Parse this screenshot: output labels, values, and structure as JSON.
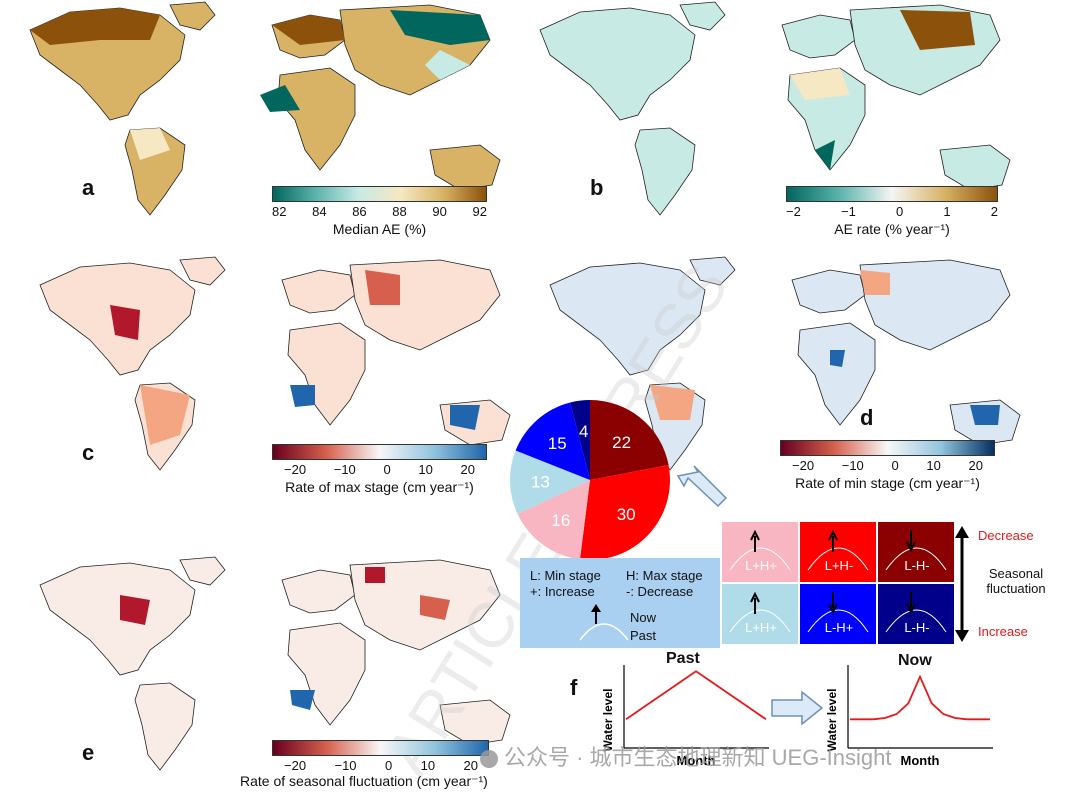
{
  "panels": {
    "a": {
      "letter": "a",
      "colorbar": {
        "label": "Median AE (%)",
        "ticks": [
          "82",
          "84",
          "86",
          "88",
          "90",
          "92"
        ],
        "colors": [
          "#01665e",
          "#5ab4ac",
          "#c7eae5",
          "#f6e8c3",
          "#d8b365",
          "#8c510a"
        ]
      }
    },
    "b": {
      "letter": "b",
      "colorbar": {
        "label": "AE rate (% year⁻¹)",
        "ticks": [
          "−2",
          "−1",
          "0",
          "1",
          "2"
        ],
        "colors": [
          "#01665e",
          "#5ab4ac",
          "#f5f5f5",
          "#d8b365",
          "#8c510a"
        ]
      }
    },
    "c": {
      "letter": "c",
      "colorbar": {
        "label": "Rate of max stage (cm year⁻¹)",
        "ticks": [
          "−20",
          "−10",
          "0",
          "10",
          "20"
        ],
        "colors": [
          "#67001f",
          "#d6604d",
          "#f7f7f7",
          "#92c5de",
          "#2166ac"
        ]
      }
    },
    "d": {
      "letter": "d",
      "colorbar": {
        "label": "Rate of min stage (cm year⁻¹)",
        "ticks": [
          "−20",
          "−10",
          "0",
          "10",
          "20"
        ],
        "colors": [
          "#67001f",
          "#d6604d",
          "#f7f7f7",
          "#92c5de",
          "#053061"
        ]
      }
    },
    "e": {
      "letter": "e",
      "colorbar": {
        "label": "Rate of seasonal fluctuation (cm year⁻¹)",
        "ticks": [
          "−20",
          "−10",
          "0",
          "10",
          "20"
        ],
        "colors": [
          "#67001f",
          "#d6604d",
          "#f7f7f7",
          "#92c5de",
          "#2166ac"
        ]
      }
    },
    "f": {
      "letter": "f"
    }
  },
  "legend": {
    "min_stage": "L: Min stage",
    "max_stage": "H: Max stage",
    "increase": "+: Increase",
    "decrease": "-: Decrease",
    "now": "Now",
    "past": "Past"
  },
  "grid": {
    "cells": [
      {
        "label": "L+H+",
        "color": "#f7b6c2"
      },
      {
        "label": "L+H-",
        "color": "#ff0000"
      },
      {
        "label": "L-H-",
        "color": "#8b0000"
      },
      {
        "label": "L+H+",
        "color": "#b0dbe8"
      },
      {
        "label": "L-H+",
        "color": "#0000ff"
      },
      {
        "label": "L-H-",
        "color": "#00008b"
      }
    ],
    "decrease_label": "Decrease",
    "increase_label": "Increase",
    "seasonal_line1": "Seasonal",
    "seasonal_line2": "fluctuation",
    "accent": "#e31a1c"
  },
  "hydrographs": {
    "past_title": "Past",
    "now_title": "Now",
    "ylabel": "Water level",
    "xlabel": "Month"
  },
  "watermark_text": "ARTICLE IN PRESS",
  "wechat_caption": "公众号 · 城市生态地理新知 UEG-Insight",
  "chart_data": [
    {
      "type": "pie",
      "categories": [
        "L-H-",
        "L+H-",
        "L+H+ (pink)",
        "L+H+ (light blue)",
        "L-H+",
        "L-H- (dark blue)"
      ],
      "values": [
        22,
        30,
        16,
        13,
        15,
        4
      ],
      "colors": [
        "#8b0000",
        "#ff0000",
        "#f7b6c2",
        "#b0dbe8",
        "#0000ff",
        "#00008b"
      ],
      "title": ""
    },
    {
      "type": "line",
      "title": "Past",
      "xlabel": "Month",
      "ylabel": "Water level",
      "x": [
        0,
        1,
        2,
        3,
        4,
        5,
        6,
        7,
        8,
        9,
        10,
        11,
        12
      ],
      "values": [
        1,
        1.3,
        1.6,
        1.9,
        2.2,
        2.5,
        2.8,
        2.5,
        2.2,
        1.9,
        1.6,
        1.3,
        1
      ]
    },
    {
      "type": "line",
      "title": "Now",
      "xlabel": "Month",
      "ylabel": "Water level",
      "x": [
        0,
        1,
        2,
        3,
        4,
        5,
        6,
        7,
        8,
        9,
        10,
        11,
        12
      ],
      "values": [
        1,
        1,
        1,
        1.05,
        1.2,
        1.6,
        2.6,
        1.6,
        1.2,
        1.05,
        1,
        1,
        1
      ]
    }
  ]
}
